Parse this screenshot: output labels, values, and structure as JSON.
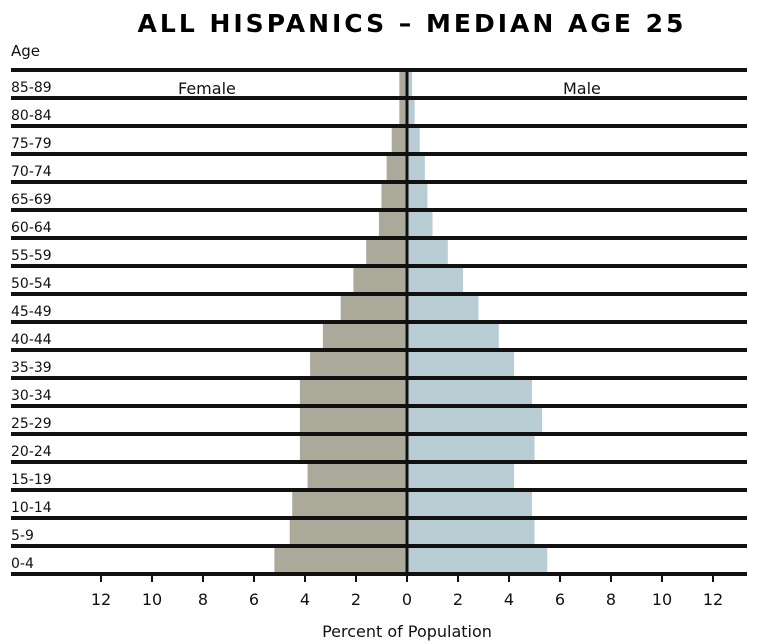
{
  "chart_data": {
    "type": "bar",
    "title": "ALL HISPANICS – MEDIAN AGE 25",
    "ylabel": "Age",
    "xlabel": "Percent of Population",
    "categories": [
      "85-89",
      "80-84",
      "75-79",
      "70-74",
      "65-69",
      "60-64",
      "55-59",
      "50-54",
      "45-49",
      "40-44",
      "35-39",
      "30-34",
      "25-29",
      "20-24",
      "15-19",
      "10-14",
      "5-9",
      "0-4"
    ],
    "series": [
      {
        "name": "Female",
        "color": "#abaa9a",
        "values": [
          0.3,
          0.3,
          0.6,
          0.8,
          1.0,
          1.1,
          1.6,
          2.1,
          2.6,
          3.3,
          3.8,
          4.2,
          4.2,
          4.2,
          3.9,
          4.5,
          4.6,
          5.2
        ]
      },
      {
        "name": "Male",
        "color": "#b8ccd3",
        "values": [
          0.2,
          0.3,
          0.5,
          0.7,
          0.8,
          1.0,
          1.6,
          2.2,
          2.8,
          3.6,
          4.2,
          4.9,
          5.3,
          5.0,
          4.2,
          4.9,
          5.0,
          5.5
        ]
      }
    ],
    "x_ticks": [
      "12",
      "10",
      "8",
      "6",
      "4",
      "2",
      "0",
      "2",
      "4",
      "6",
      "8",
      "10",
      "12"
    ],
    "xlim": [
      -12,
      12
    ],
    "legend": "inline-top"
  }
}
